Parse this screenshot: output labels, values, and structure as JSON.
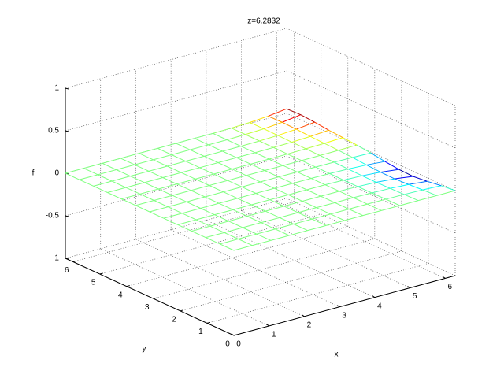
{
  "chart_data": {
    "type": "mesh",
    "title": "z=6.2832",
    "xlabel": "x",
    "ylabel": "y",
    "zlabel": "f",
    "x": [
      0,
      0.5236,
      1.0472,
      1.5708,
      2.0944,
      2.618,
      3.1416,
      3.6652,
      4.1888,
      4.7124,
      5.236,
      5.7596,
      6.2832
    ],
    "y": [
      0,
      0.5236,
      1.0472,
      1.5708,
      2.0944,
      2.618,
      3.1416,
      3.6652,
      4.1888,
      4.7124,
      5.236,
      5.7596,
      6.2832
    ],
    "z": [
      [
        0,
        0,
        0,
        0,
        0,
        0,
        0,
        0,
        0,
        0,
        0,
        0,
        0
      ],
      [
        0,
        0,
        0,
        0,
        0,
        0,
        0,
        0,
        0,
        -0.001,
        -0.004,
        -0.009,
        -0.018
      ],
      [
        0,
        0,
        0,
        0,
        0,
        0,
        0,
        0,
        0,
        -0.003,
        -0.008,
        -0.021,
        -0.042
      ],
      [
        0,
        0,
        0,
        0,
        0,
        0,
        0,
        0,
        0,
        -0.004,
        -0.012,
        -0.03,
        -0.06
      ],
      [
        0,
        0,
        0,
        0,
        0,
        0,
        0,
        0,
        0,
        -0.004,
        -0.011,
        -0.027,
        -0.054
      ],
      [
        0,
        0,
        0,
        0,
        0,
        0,
        0,
        0,
        0,
        -0.002,
        -0.007,
        -0.018,
        -0.036
      ],
      [
        0,
        0,
        0,
        0,
        0,
        0,
        0,
        0,
        0,
        -0.001,
        -0.002,
        -0.006,
        -0.012
      ],
      [
        0,
        0,
        0,
        0,
        0,
        0,
        0,
        0,
        0,
        0,
        0.001,
        0.003,
        0.006
      ],
      [
        0,
        0,
        0,
        0,
        0,
        0,
        0,
        0,
        0,
        0.001,
        0.004,
        0.009,
        0.018
      ],
      [
        0,
        0,
        0,
        0,
        0,
        0,
        0,
        0,
        0,
        0.002,
        0.006,
        0.015,
        0.03
      ],
      [
        0,
        0,
        0,
        0,
        0,
        0,
        0,
        0,
        0,
        0.003,
        0.01,
        0.024,
        0.048
      ],
      [
        0,
        0,
        0,
        0,
        0,
        0,
        0,
        0,
        0,
        0.004,
        0.012,
        0.03,
        0.06
      ],
      [
        0,
        0,
        0,
        0,
        0,
        0,
        0,
        0,
        0,
        0.004,
        0.011,
        0.027,
        0.054
      ]
    ],
    "xlim": [
      0,
      6.2832
    ],
    "ylim": [
      0,
      6.2832
    ],
    "zlim": [
      -1,
      1
    ],
    "xticks": [
      0,
      1,
      2,
      3,
      4,
      5,
      6
    ],
    "yticks": [
      0,
      1,
      2,
      3,
      4,
      5,
      6
    ],
    "zticks": [
      -1,
      -0.5,
      0,
      0.5,
      1
    ],
    "grid": true,
    "colormap": "jet"
  }
}
